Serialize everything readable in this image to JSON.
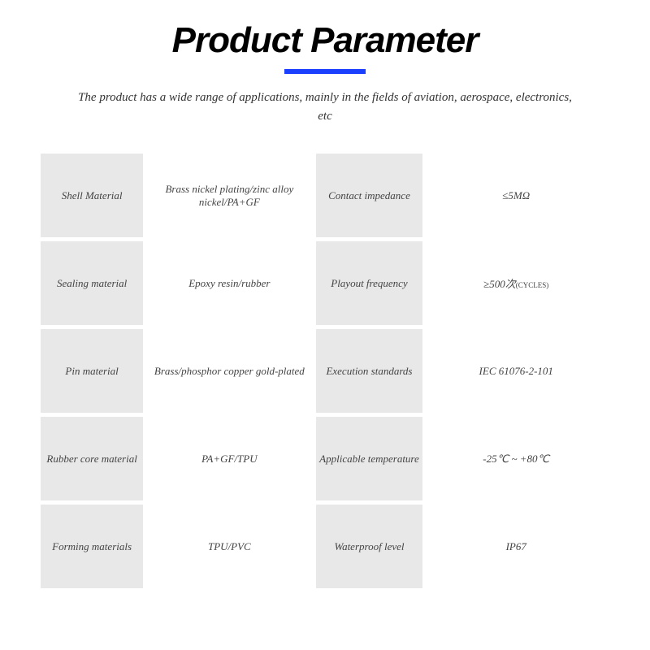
{
  "header": {
    "title": "Product Parameter",
    "subtitle": "The product has a wide range of applications, mainly in the fields of aviation, aerospace, electronics, etc"
  },
  "table": {
    "rows": [
      {
        "label1": "Shell Material",
        "value1": "Brass nickel plating/zinc alloy nickel/PA+GF",
        "label2": "Contact impedance",
        "value2": "≤5MΩ"
      },
      {
        "label1": "Sealing material",
        "value1": "Epoxy resin/rubber",
        "label2": "Playout frequency",
        "value2": "≥500次",
        "value2_suffix": "(CYCLES)"
      },
      {
        "label1": "Pin material",
        "value1": "Brass/phosphor copper gold-plated",
        "label2": "Execution standards",
        "value2": "IEC 61076-2-101"
      },
      {
        "label1": "Rubber core material",
        "value1": "PA+GF/TPU",
        "label2": "Applicable temperature",
        "value2": "-25℃ ~ +80℃"
      },
      {
        "label1": "Forming materials",
        "value1": "TPU/PVC",
        "label2": "Waterproof level",
        "value2": "IP67"
      }
    ]
  },
  "styling": {
    "title_color": "#000000",
    "underline_color": "#1a3fff",
    "label_bg": "#e8e8e8",
    "value_bg": "#ffffff",
    "text_color": "#444444"
  }
}
